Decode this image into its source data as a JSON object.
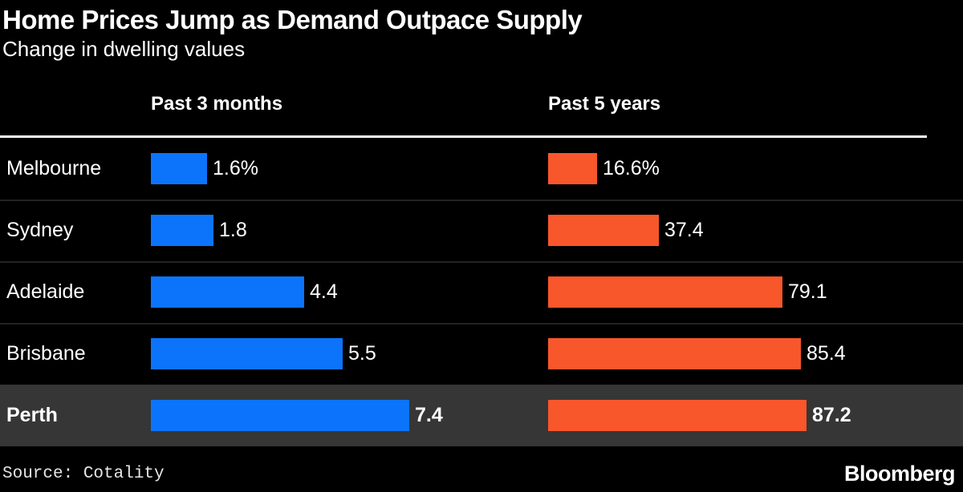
{
  "header": {
    "title": "Home Prices Jump as Demand Outpace Supply",
    "subtitle": "Change in dwelling values"
  },
  "chart_data": {
    "type": "bar",
    "orientation": "horizontal",
    "categories": [
      "Melbourne",
      "Sydney",
      "Adelaide",
      "Brisbane",
      "Perth"
    ],
    "series": [
      {
        "name": "Past 3 months",
        "color": "#0b74fb",
        "values": [
          1.6,
          1.8,
          4.4,
          5.5,
          7.4
        ],
        "labels": [
          "1.6%",
          "1.8",
          "4.4",
          "5.5",
          "7.4"
        ]
      },
      {
        "name": "Past 5 years",
        "color": "#f8562b",
        "values": [
          16.6,
          37.4,
          79.1,
          85.4,
          87.2
        ],
        "labels": [
          "16.6%",
          "37.4",
          "79.1",
          "85.4",
          "87.2"
        ]
      }
    ],
    "unit": "%",
    "highlighted_category": "Perth",
    "legend_position": "column-headers",
    "grid": false
  },
  "footer": {
    "source": "Source: Cotality",
    "brand": "Bloomberg"
  },
  "colors": {
    "background": "#000000",
    "text": "#ffffff",
    "bar_blue": "#0b74fb",
    "bar_orange": "#f8562b",
    "highlight_row_bg": "#363636",
    "separator": "#232323",
    "rule": "#ffffff"
  }
}
